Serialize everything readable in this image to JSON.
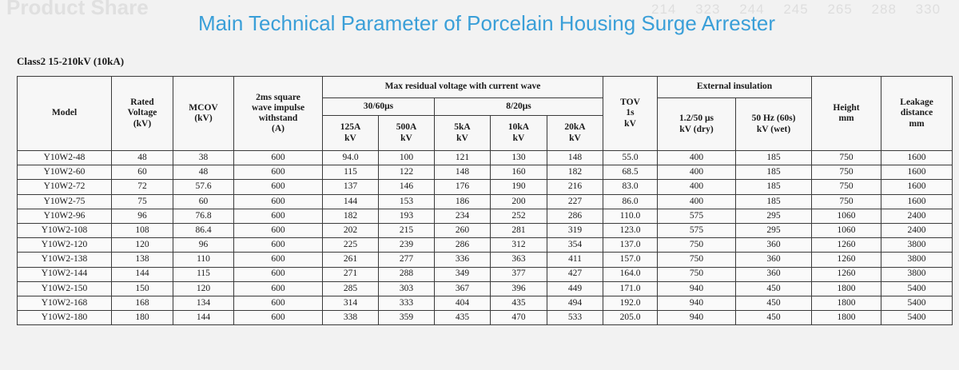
{
  "background_text": {
    "left": "Product Share",
    "numbers": [
      "214",
      "323",
      "244",
      "245",
      "265",
      "288",
      "330"
    ]
  },
  "title": "Main Technical Parameter of Porcelain Housing Surge Arrester",
  "subtitle": "Class2 15-210kV (10kA)",
  "headers": {
    "model": "Model",
    "rated_voltage": [
      "Rated",
      "Voltage",
      "(kV)"
    ],
    "mcov": [
      "MCOV",
      "(kV)"
    ],
    "impulse": [
      "2ms square",
      "wave impulse",
      "withstand",
      "(A)"
    ],
    "max_residual": "Max residual voltage with current wave",
    "wave_30_60": "30/60μs",
    "wave_8_20": "8/20μs",
    "c125": [
      "125A",
      "kV"
    ],
    "c500": [
      "500A",
      "kV"
    ],
    "c5k": [
      "5kA",
      "kV"
    ],
    "c10k": [
      "10kA",
      "kV"
    ],
    "c20k": [
      "20kA",
      "kV"
    ],
    "tov": [
      "TOV",
      "1s",
      "kV"
    ],
    "external": "External insulation",
    "lightning": [
      "1.2/50 μs",
      "kV (dry)"
    ],
    "power_freq": [
      "50 Hz (60s)",
      "kV (wet)"
    ],
    "height": [
      "Height",
      "mm"
    ],
    "leakage": [
      "Leakage",
      "distance",
      "mm"
    ]
  },
  "rows": [
    [
      "Y10W2-48",
      "48",
      "38",
      "600",
      "94.0",
      "100",
      "121",
      "130",
      "148",
      "55.0",
      "400",
      "185",
      "750",
      "1600"
    ],
    [
      "Y10W2-60",
      "60",
      "48",
      "600",
      "115",
      "122",
      "148",
      "160",
      "182",
      "68.5",
      "400",
      "185",
      "750",
      "1600"
    ],
    [
      "Y10W2-72",
      "72",
      "57.6",
      "600",
      "137",
      "146",
      "176",
      "190",
      "216",
      "83.0",
      "400",
      "185",
      "750",
      "1600"
    ],
    [
      "Y10W2-75",
      "75",
      "60",
      "600",
      "144",
      "153",
      "186",
      "200",
      "227",
      "86.0",
      "400",
      "185",
      "750",
      "1600"
    ],
    [
      "Y10W2-96",
      "96",
      "76.8",
      "600",
      "182",
      "193",
      "234",
      "252",
      "286",
      "110.0",
      "575",
      "295",
      "1060",
      "2400"
    ],
    [
      "Y10W2-108",
      "108",
      "86.4",
      "600",
      "202",
      "215",
      "260",
      "281",
      "319",
      "123.0",
      "575",
      "295",
      "1060",
      "2400"
    ],
    [
      "Y10W2-120",
      "120",
      "96",
      "600",
      "225",
      "239",
      "286",
      "312",
      "354",
      "137.0",
      "750",
      "360",
      "1260",
      "3800"
    ],
    [
      "Y10W2-138",
      "138",
      "110",
      "600",
      "261",
      "277",
      "336",
      "363",
      "411",
      "157.0",
      "750",
      "360",
      "1260",
      "3800"
    ],
    [
      "Y10W2-144",
      "144",
      "115",
      "600",
      "271",
      "288",
      "349",
      "377",
      "427",
      "164.0",
      "750",
      "360",
      "1260",
      "3800"
    ],
    [
      "Y10W2-150",
      "150",
      "120",
      "600",
      "285",
      "303",
      "367",
      "396",
      "449",
      "171.0",
      "940",
      "450",
      "1800",
      "5400"
    ],
    [
      "Y10W2-168",
      "168",
      "134",
      "600",
      "314",
      "333",
      "404",
      "435",
      "494",
      "192.0",
      "940",
      "450",
      "1800",
      "5400"
    ],
    [
      "Y10W2-180",
      "180",
      "144",
      "600",
      "338",
      "359",
      "435",
      "470",
      "533",
      "205.0",
      "940",
      "450",
      "1800",
      "5400"
    ]
  ]
}
